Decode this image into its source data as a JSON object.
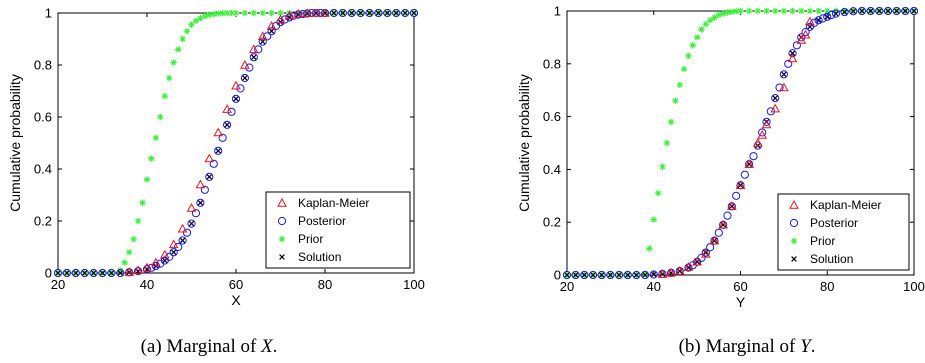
{
  "chart_data": [
    {
      "type": "scatter",
      "caption": {
        "prefix": "(a) Marginal of ",
        "var": "X",
        "suffix": "."
      },
      "xlabel": "X",
      "ylabel": "Cumulative probability",
      "xlim": [
        20,
        100
      ],
      "ylim": [
        0,
        1
      ],
      "xticks": [
        "20",
        "40",
        "60",
        "80",
        "100"
      ],
      "yticks": [
        "0",
        "0.2",
        "0.4",
        "0.6",
        "0.8",
        "1"
      ],
      "legend_position": "bottom-right",
      "series": [
        {
          "name": "Kaplan-Meier",
          "marker": "triangle",
          "color": "#e8141c",
          "x": [
            36,
            38,
            40,
            42,
            44,
            46,
            48,
            50,
            52,
            54,
            56,
            58,
            60,
            62,
            64,
            66,
            68,
            70,
            72,
            74,
            76,
            78,
            80
          ],
          "y": [
            0.003,
            0.01,
            0.02,
            0.04,
            0.07,
            0.11,
            0.17,
            0.25,
            0.34,
            0.44,
            0.54,
            0.63,
            0.72,
            0.8,
            0.86,
            0.91,
            0.95,
            0.975,
            0.99,
            0.996,
            0.999,
            1,
            1
          ]
        },
        {
          "name": "Posterior",
          "marker": "circle",
          "color": "#1a1ae6",
          "x": [
            20,
            22,
            24,
            26,
            28,
            30,
            32,
            34,
            36,
            38,
            40,
            41,
            42,
            43,
            44,
            45,
            46,
            47,
            48,
            49,
            50,
            51,
            52,
            53,
            54,
            55,
            56,
            57,
            58,
            59,
            60,
            61,
            62,
            63,
            64,
            65,
            66,
            67,
            68,
            69,
            70,
            71,
            72,
            73,
            74,
            75,
            76,
            77,
            78,
            79,
            80,
            82,
            84,
            86,
            88,
            90,
            92,
            94,
            96,
            98,
            100
          ],
          "y": [
            0,
            0,
            0,
            0,
            0,
            0,
            0,
            0,
            0.003,
            0.007,
            0.015,
            0.02,
            0.027,
            0.036,
            0.048,
            0.062,
            0.08,
            0.1,
            0.125,
            0.155,
            0.19,
            0.23,
            0.27,
            0.32,
            0.37,
            0.42,
            0.47,
            0.52,
            0.57,
            0.62,
            0.67,
            0.71,
            0.75,
            0.79,
            0.83,
            0.86,
            0.89,
            0.91,
            0.93,
            0.95,
            0.965,
            0.975,
            0.983,
            0.99,
            0.994,
            0.996,
            0.998,
            1,
            1,
            1,
            1,
            1,
            1,
            1,
            1,
            1,
            1,
            1,
            1,
            1,
            1
          ]
        },
        {
          "name": "Prior",
          "marker": "star",
          "color": "#3cf03c",
          "x": [
            20,
            22,
            24,
            26,
            28,
            30,
            32,
            34,
            35,
            36,
            37,
            38,
            39,
            40,
            41,
            42,
            43,
            44,
            45,
            46,
            47,
            48,
            49,
            50,
            51,
            52,
            53,
            54,
            55,
            56,
            57,
            58,
            59,
            60,
            62,
            64,
            66,
            68,
            70,
            72,
            74,
            76,
            78,
            80,
            82,
            84,
            86,
            88,
            90,
            92,
            94,
            96,
            98,
            100
          ],
          "y": [
            0,
            0,
            0,
            0,
            0,
            0,
            0,
            0.01,
            0.04,
            0.08,
            0.13,
            0.2,
            0.27,
            0.36,
            0.44,
            0.52,
            0.6,
            0.68,
            0.75,
            0.81,
            0.86,
            0.9,
            0.93,
            0.955,
            0.97,
            0.98,
            0.988,
            0.993,
            0.996,
            0.998,
            0.999,
            1,
            1,
            1,
            1,
            1,
            1,
            1,
            1,
            1,
            1,
            1,
            1,
            1,
            1,
            1,
            1,
            1,
            1,
            1,
            1,
            1,
            1,
            1
          ]
        },
        {
          "name": "Solution",
          "marker": "x",
          "color": "#000000",
          "x": [
            20,
            22,
            24,
            26,
            28,
            30,
            32,
            34,
            36,
            38,
            40,
            42,
            44,
            46,
            48,
            50,
            52,
            54,
            56,
            58,
            60,
            62,
            64,
            66,
            68,
            70,
            72,
            74,
            76,
            78,
            80,
            82,
            84,
            86,
            88,
            90,
            92,
            94,
            96,
            98,
            100
          ],
          "y": [
            0,
            0,
            0,
            0,
            0,
            0,
            0,
            0,
            0.003,
            0.007,
            0.015,
            0.027,
            0.048,
            0.08,
            0.125,
            0.19,
            0.27,
            0.37,
            0.47,
            0.57,
            0.67,
            0.75,
            0.83,
            0.89,
            0.93,
            0.965,
            0.983,
            0.994,
            0.998,
            1,
            1,
            1,
            1,
            1,
            1,
            1,
            1,
            1,
            1,
            1,
            1
          ]
        }
      ]
    },
    {
      "type": "scatter",
      "caption": {
        "prefix": "(b) Marginal of ",
        "var": "Y",
        "suffix": "."
      },
      "xlabel": "Y",
      "ylabel": "Cumulative probability",
      "xlim": [
        20,
        100
      ],
      "ylim": [
        0,
        1
      ],
      "xticks": [
        "20",
        "40",
        "60",
        "80",
        "100"
      ],
      "yticks": [
        "0",
        "0.2",
        "0.4",
        "0.6",
        "0.8",
        "1"
      ],
      "legend_position": "bottom-right",
      "series": [
        {
          "name": "Kaplan-Meier",
          "marker": "triangle",
          "color": "#e8141c",
          "x": [
            42,
            44,
            46,
            48,
            50,
            52,
            54,
            56,
            58,
            60,
            62,
            64,
            65,
            66,
            68,
            70,
            72,
            74,
            75,
            76
          ],
          "y": [
            0.003,
            0.008,
            0.015,
            0.03,
            0.05,
            0.08,
            0.13,
            0.19,
            0.26,
            0.34,
            0.42,
            0.5,
            0.53,
            0.57,
            0.63,
            0.71,
            0.82,
            0.89,
            0.91,
            0.96
          ]
        },
        {
          "name": "Posterior",
          "marker": "circle",
          "color": "#1a1ae6",
          "x": [
            20,
            22,
            24,
            26,
            28,
            30,
            32,
            34,
            36,
            38,
            40,
            42,
            44,
            46,
            48,
            49,
            50,
            51,
            52,
            53,
            54,
            55,
            56,
            57,
            58,
            59,
            60,
            61,
            62,
            63,
            64,
            65,
            66,
            67,
            68,
            69,
            70,
            71,
            72,
            73,
            74,
            75,
            76,
            77,
            78,
            79,
            80,
            81,
            82,
            84,
            86,
            88,
            90,
            92,
            94,
            96,
            98,
            100
          ],
          "y": [
            0,
            0,
            0,
            0,
            0,
            0,
            0,
            0,
            0,
            0,
            0.002,
            0.004,
            0.008,
            0.015,
            0.028,
            0.037,
            0.05,
            0.065,
            0.085,
            0.105,
            0.13,
            0.16,
            0.19,
            0.225,
            0.26,
            0.3,
            0.34,
            0.38,
            0.42,
            0.45,
            0.49,
            0.54,
            0.58,
            0.62,
            0.67,
            0.71,
            0.76,
            0.8,
            0.84,
            0.87,
            0.9,
            0.92,
            0.94,
            0.955,
            0.965,
            0.972,
            0.978,
            0.985,
            0.99,
            0.996,
            0.999,
            1,
            1,
            1,
            1,
            1,
            1,
            1
          ]
        },
        {
          "name": "Prior",
          "marker": "star",
          "color": "#3cf03c",
          "x": [
            20,
            22,
            24,
            26,
            28,
            30,
            32,
            34,
            36,
            38,
            39,
            40,
            41,
            42,
            43,
            44,
            45,
            46,
            47,
            48,
            49,
            50,
            51,
            52,
            53,
            54,
            55,
            56,
            57,
            58,
            59,
            60,
            62,
            64,
            66,
            68,
            70,
            72,
            74,
            76,
            78,
            80,
            82,
            84,
            86,
            88,
            90,
            92,
            94,
            96,
            98,
            100
          ],
          "y": [
            0,
            0,
            0,
            0,
            0,
            0,
            0,
            0,
            0,
            0.005,
            0.1,
            0.21,
            0.31,
            0.41,
            0.5,
            0.58,
            0.66,
            0.72,
            0.78,
            0.83,
            0.87,
            0.9,
            0.93,
            0.95,
            0.965,
            0.975,
            0.985,
            0.99,
            0.994,
            0.997,
            0.999,
            1,
            1,
            1,
            1,
            1,
            1,
            1,
            1,
            1,
            1,
            1,
            1,
            1,
            1,
            1,
            1,
            1,
            1,
            1,
            1,
            1
          ]
        },
        {
          "name": "Solution",
          "marker": "x",
          "color": "#000000",
          "x": [
            20,
            22,
            24,
            26,
            28,
            30,
            32,
            34,
            36,
            38,
            40,
            42,
            44,
            46,
            48,
            50,
            52,
            54,
            56,
            58,
            60,
            62,
            64,
            66,
            68,
            70,
            72,
            74,
            76,
            78,
            80,
            82,
            84,
            86,
            88,
            90,
            92,
            94,
            96,
            98,
            100
          ],
          "y": [
            0,
            0,
            0,
            0,
            0,
            0,
            0,
            0,
            0,
            0,
            0.002,
            0.004,
            0.008,
            0.015,
            0.028,
            0.05,
            0.085,
            0.13,
            0.19,
            0.26,
            0.34,
            0.42,
            0.49,
            0.58,
            0.67,
            0.76,
            0.84,
            0.9,
            0.94,
            0.965,
            0.978,
            0.99,
            0.996,
            0.999,
            1,
            1,
            1,
            1,
            1,
            1,
            1
          ]
        }
      ]
    }
  ]
}
